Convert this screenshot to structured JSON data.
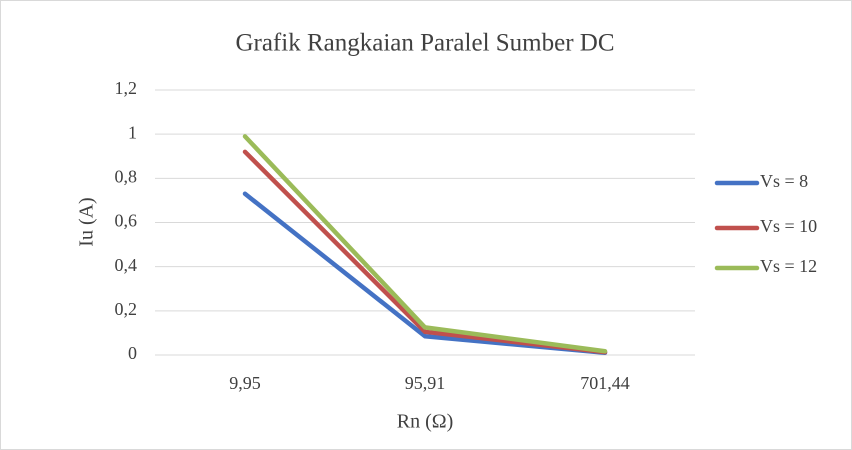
{
  "chart_data": {
    "type": "line",
    "title": "Grafik Rangkaian Paralel Sumber DC",
    "x_label": "Rn (Ω)",
    "y_label": "Iu (A)",
    "categories": [
      "9,95",
      "95,91",
      "701,44"
    ],
    "series": [
      {
        "name": "Vs = 8",
        "color": "#4472c4",
        "values": [
          0.73,
          0.085,
          0.01
        ]
      },
      {
        "name": "Vs = 10",
        "color": "#c0504d",
        "values": [
          0.92,
          0.105,
          0.013
        ]
      },
      {
        "name": "Vs = 12",
        "color": "#9bbb59",
        "values": [
          0.99,
          0.125,
          0.017
        ]
      }
    ],
    "ylim": [
      0,
      1.2
    ],
    "yticks": [
      0,
      {
        "value": 0.2,
        "label": "0,2"
      },
      {
        "value": 0.4,
        "label": "0,4"
      },
      {
        "value": 0.6,
        "label": "0,6"
      },
      {
        "value": 0.8,
        "label": "0,8"
      },
      1,
      {
        "value": 1.2,
        "label": "1,2"
      }
    ],
    "grid": true,
    "legend": "right"
  }
}
